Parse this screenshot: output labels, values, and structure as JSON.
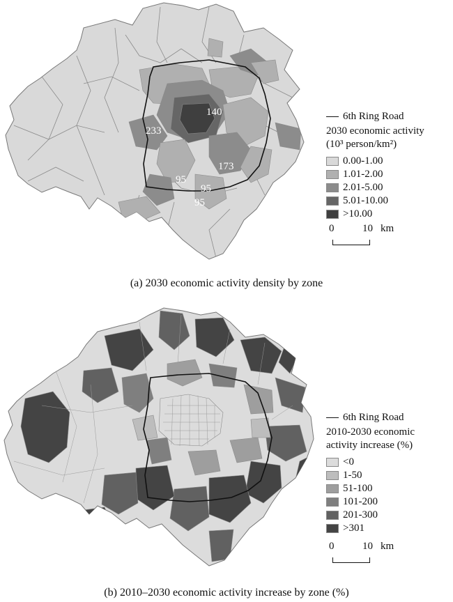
{
  "panels": [
    {
      "caption": "(a) 2030  economic activity density by zone",
      "ring_road_label": "6th Ring Road",
      "legend_title_lines": [
        "2030 economic activity",
        "(10³ person/km²)"
      ],
      "legend_items": [
        {
          "label": "0.00-1.00",
          "color": "#d9d9d9"
        },
        {
          "label": "1.01-2.00",
          "color": "#b0b0b0"
        },
        {
          "label": "2.01-5.00",
          "color": "#8c8c8c"
        },
        {
          "label": "5.01-10.00",
          "color": "#666666"
        },
        {
          "label": ">10.00",
          "color": "#3f3f3f"
        }
      ],
      "map_labels": [
        "140",
        "233",
        "173",
        "95",
        "95",
        "95"
      ],
      "scale": {
        "zero": "0",
        "ten": "10",
        "unit": "km"
      }
    },
    {
      "caption": "(b) 2010–2030 economic activity increase by zone (%)",
      "ring_road_label": "6th Ring Road",
      "legend_title_lines": [
        "2010-2030 economic",
        "activity increase (%)"
      ],
      "legend_items": [
        {
          "label": "<0",
          "color": "#dcdcdc"
        },
        {
          "label": "1-50",
          "color": "#bdbdbd"
        },
        {
          "label": "51-100",
          "color": "#9e9e9e"
        },
        {
          "label": "101-200",
          "color": "#7f7f7f"
        },
        {
          "label": "201-300",
          "color": "#616161"
        },
        {
          "label": ">301",
          "color": "#444444"
        }
      ],
      "scale": {
        "zero": "0",
        "ten": "10",
        "unit": "km"
      }
    }
  ]
}
